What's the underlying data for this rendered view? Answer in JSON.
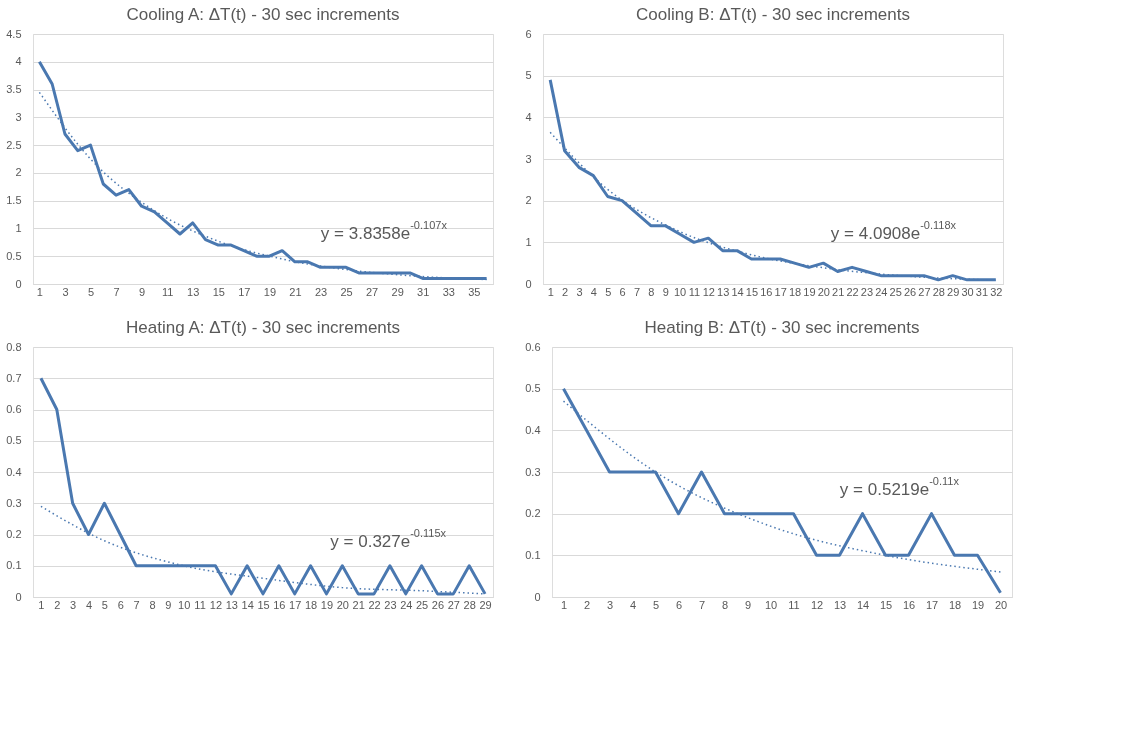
{
  "chart_data": [
    {
      "type": "line",
      "title": "Cooling A: ΔT(t) - 30 sec increments",
      "x": [
        1,
        2,
        3,
        4,
        5,
        6,
        7,
        8,
        9,
        10,
        11,
        12,
        13,
        14,
        15,
        16,
        17,
        18,
        19,
        20,
        21,
        22,
        23,
        24,
        25,
        26,
        27,
        28,
        29,
        30,
        31,
        32,
        33,
        34,
        35,
        36
      ],
      "xlim": [
        0.5,
        36.5
      ],
      "xticks": [
        1,
        3,
        5,
        7,
        9,
        11,
        13,
        15,
        17,
        19,
        21,
        23,
        25,
        27,
        29,
        31,
        33,
        35
      ],
      "ylim": [
        0,
        4.5
      ],
      "yticks": [
        0,
        0.5,
        1,
        1.5,
        2,
        2.5,
        3,
        3.5,
        4,
        4.5
      ],
      "grid": "y",
      "series": [
        {
          "color": "#4a78b0",
          "line_style": "solid",
          "values": [
            4,
            3.6,
            2.7,
            2.4,
            2.5,
            1.8,
            1.6,
            1.7,
            1.4,
            1.3,
            1.1,
            0.9,
            1.1,
            0.8,
            0.7,
            0.7,
            0.6,
            0.5,
            0.5,
            0.6,
            0.4,
            0.4,
            0.3,
            0.3,
            0.3,
            0.2,
            0.2,
            0.2,
            0.2,
            0.2,
            0.1,
            0.1,
            0.1,
            0.1,
            0.1,
            0.1
          ]
        },
        {
          "type": "line",
          "color": "#4a78b0",
          "line_style": "dotted",
          "x": [
            1,
            5,
            10,
            15,
            20,
            25,
            30,
            36
          ],
          "values": [
            3.45,
            2.25,
            1.32,
            0.77,
            0.45,
            0.26,
            0.15,
            0.08
          ]
        }
      ],
      "annotations": [
        "y = 3.8358e$^{-0.107x}$"
      ]
    },
    {
      "type": "line",
      "title": "Cooling B: ΔT(t) - 30 sec increments",
      "x": [
        1,
        2,
        3,
        4,
        5,
        6,
        7,
        8,
        9,
        10,
        11,
        12,
        13,
        14,
        15,
        16,
        17,
        18,
        19,
        20,
        21,
        22,
        23,
        24,
        25,
        26,
        27,
        28,
        29,
        30,
        31,
        32
      ],
      "xlim": [
        0.5,
        32.5
      ],
      "xticks": [
        1,
        2,
        3,
        4,
        5,
        6,
        7,
        8,
        9,
        10,
        11,
        12,
        13,
        14,
        15,
        16,
        17,
        18,
        19,
        20,
        21,
        22,
        23,
        24,
        25,
        26,
        27,
        28,
        29,
        30,
        31,
        32
      ],
      "ylim": [
        0,
        6
      ],
      "yticks": [
        0,
        1,
        2,
        3,
        4,
        5,
        6
      ],
      "grid": "y",
      "series": [
        {
          "color": "#4a78b0",
          "line_style": "solid",
          "values": [
            4.9,
            3.2,
            2.8,
            2.6,
            2.1,
            2.0,
            1.7,
            1.4,
            1.4,
            1.2,
            1.0,
            1.1,
            0.8,
            0.8,
            0.6,
            0.6,
            0.6,
            0.5,
            0.4,
            0.5,
            0.3,
            0.4,
            0.3,
            0.2,
            0.2,
            0.2,
            0.2,
            0.1,
            0.2,
            0.1,
            0.1,
            0.1
          ]
        },
        {
          "type": "line",
          "color": "#4a78b0",
          "line_style": "dotted",
          "x": [
            1,
            5,
            10,
            15,
            20,
            25,
            32
          ],
          "values": [
            3.64,
            2.27,
            1.26,
            0.7,
            0.39,
            0.21,
            0.09
          ]
        }
      ],
      "annotations": [
        "y = 4.0908e$^{-0.118x}$"
      ]
    },
    {
      "type": "line",
      "title": "Heating A: ΔT(t) - 30 sec increments",
      "x": [
        1,
        2,
        3,
        4,
        5,
        6,
        7,
        8,
        9,
        10,
        11,
        12,
        13,
        14,
        15,
        16,
        17,
        18,
        19,
        20,
        21,
        22,
        23,
        24,
        25,
        26,
        27,
        28,
        29
      ],
      "xlim": [
        0.5,
        29.5
      ],
      "xticks": [
        1,
        2,
        3,
        4,
        5,
        6,
        7,
        8,
        9,
        10,
        11,
        12,
        13,
        14,
        15,
        16,
        17,
        18,
        19,
        20,
        21,
        22,
        23,
        24,
        25,
        26,
        27,
        28,
        29
      ],
      "ylim": [
        0,
        0.8
      ],
      "yticks": [
        0,
        0.1,
        0.2,
        0.3,
        0.4,
        0.5,
        0.6,
        0.7,
        0.8
      ],
      "grid": "y",
      "series": [
        {
          "color": "#4a78b0",
          "line_style": "solid",
          "values": [
            0.7,
            0.6,
            0.3,
            0.2,
            0.3,
            0.2,
            0.1,
            0.1,
            0.1,
            0.1,
            0.1,
            0.1,
            0.01,
            0.1,
            0.01,
            0.1,
            0.01,
            0.1,
            0.01,
            0.1,
            0.01,
            0.01,
            0.1,
            0.01,
            0.1,
            0.01,
            0.01,
            0.1,
            0.01
          ]
        },
        {
          "type": "line",
          "color": "#4a78b0",
          "line_style": "dotted",
          "x": [
            1,
            5,
            10,
            15,
            20,
            25,
            29
          ],
          "values": [
            0.29,
            0.18,
            0.1,
            0.06,
            0.03,
            0.02,
            0.01
          ]
        }
      ],
      "annotations": [
        "y = 0.327e$^{-0.115x}$"
      ]
    },
    {
      "type": "line",
      "title": "Heating B: ΔT(t) - 30 sec increments",
      "x": [
        1,
        2,
        3,
        4,
        5,
        6,
        7,
        8,
        9,
        10,
        11,
        12,
        13,
        14,
        15,
        16,
        17,
        18,
        19,
        20
      ],
      "xlim": [
        0.5,
        20.5
      ],
      "xticks": [
        1,
        2,
        3,
        4,
        5,
        6,
        7,
        8,
        9,
        10,
        11,
        12,
        13,
        14,
        15,
        16,
        17,
        18,
        19,
        20
      ],
      "ylim": [
        0,
        0.6
      ],
      "yticks": [
        0,
        0.1,
        0.2,
        0.3,
        0.4,
        0.5,
        0.6
      ],
      "grid": "y",
      "series": [
        {
          "color": "#4a78b0",
          "line_style": "solid",
          "values": [
            0.5,
            0.4,
            0.3,
            0.3,
            0.3,
            0.2,
            0.3,
            0.2,
            0.2,
            0.2,
            0.2,
            0.1,
            0.1,
            0.2,
            0.1,
            0.1,
            0.2,
            0.1,
            0.1,
            0.01
          ]
        },
        {
          "type": "line",
          "color": "#4a78b0",
          "line_style": "dotted",
          "x": [
            1,
            5,
            10,
            15,
            20
          ],
          "values": [
            0.47,
            0.3,
            0.17,
            0.1,
            0.06
          ]
        }
      ],
      "annotations": [
        "y = 0.5219e$^{-0.11x}$"
      ]
    }
  ]
}
